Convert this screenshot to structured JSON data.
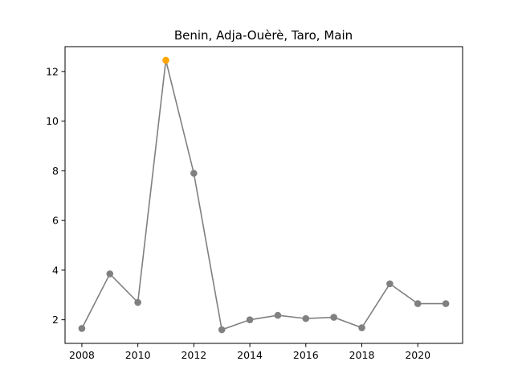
{
  "chart_data": {
    "type": "line",
    "title": "Benin, Adja-Ouèrè, Taro, Main",
    "xlabel": "",
    "ylabel": "",
    "xlim": [
      2007.4,
      2021.6
    ],
    "ylim": [
      1.05,
      13.0
    ],
    "x_ticks": [
      2008,
      2010,
      2012,
      2014,
      2016,
      2018,
      2020
    ],
    "y_ticks": [
      2,
      4,
      6,
      8,
      10,
      12
    ],
    "grid": false,
    "legend": "none",
    "series": [
      {
        "x": [
          2008,
          2009,
          2010,
          2011,
          2012,
          2013,
          2014,
          2015,
          2016,
          2017,
          2018,
          2019,
          2020,
          2021
        ],
        "values": [
          1.65,
          3.85,
          2.7,
          12.45,
          7.9,
          1.6,
          2.0,
          2.18,
          2.05,
          2.1,
          1.68,
          3.45,
          2.65,
          2.65
        ],
        "color": "#808080",
        "highlight_index": 3,
        "highlight_color": "#FFA500"
      }
    ]
  }
}
